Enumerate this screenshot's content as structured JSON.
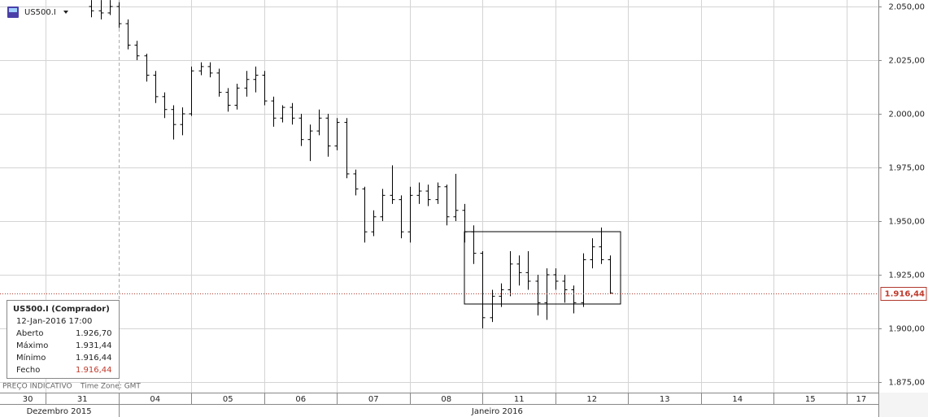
{
  "header": {
    "symbol": "US500.I"
  },
  "info_box": {
    "title": "US500.I (Comprador)",
    "date": "12-Jan-2016 17:00",
    "rows": [
      [
        "Aberto",
        "1.926,70"
      ],
      [
        "Máximo",
        "1.931,44"
      ],
      [
        "Mínimo",
        "1.916,44"
      ],
      [
        "Fecho",
        "1.916,44"
      ]
    ]
  },
  "footer": {
    "note": "PREÇO INDICATIVO",
    "timezone": "Time Zone: GMT"
  },
  "chart_data": {
    "type": "ohlc",
    "color": "#000000",
    "grid": true,
    "x": [
      -0.375,
      -0.25,
      -0.125,
      0,
      0.125,
      0.25,
      0.375,
      0.5,
      0.625,
      0.75,
      0.875,
      1,
      1.125,
      1.25,
      1.375,
      1.5,
      1.625,
      1.75,
      1.875,
      2,
      2.125,
      2.25,
      2.375,
      2.5,
      2.625,
      2.75,
      2.875,
      3,
      3.125,
      3.25,
      3.375,
      3.5,
      3.625,
      3.75,
      3.875,
      4,
      4.125,
      4.25,
      4.375,
      4.5,
      4.625,
      4.75,
      4.875,
      5,
      5.125,
      5.25,
      5.375,
      5.5,
      5.625,
      5.75,
      5.875,
      6,
      6.125,
      6.25,
      6.375,
      6.5,
      6.625,
      6.75
    ],
    "open": [
      2050,
      2048,
      2047,
      2050,
      2042,
      2032,
      2027,
      2018,
      2008,
      2002,
      1995,
      2000,
      2020,
      2022,
      2019,
      2010,
      2004,
      2012,
      2016,
      2018,
      2006,
      1998,
      2003,
      1998,
      1988,
      1992,
      1998,
      1985,
      1996,
      1972,
      1965,
      1945,
      1952,
      1962,
      1960,
      1945,
      1962,
      1964,
      1960,
      1966,
      1952,
      1955,
      1945,
      1935,
      1905,
      1915,
      1918,
      1930,
      1926,
      1922,
      1912,
      1925,
      1922,
      1918,
      1912,
      1932,
      1938,
      1932
    ],
    "high": [
      2053,
      2053,
      2053,
      2052,
      2044,
      2034,
      2028,
      2020,
      2010,
      2004,
      2003,
      2022,
      2024,
      2024,
      2021,
      2012,
      2014,
      2020,
      2022,
      2020,
      2008,
      2004,
      2005,
      2000,
      1995,
      2002,
      2000,
      1998,
      1998,
      1974,
      1966,
      1955,
      1965,
      1976,
      1962,
      1966,
      1968,
      1967,
      1968,
      1967,
      1972,
      1958,
      1948,
      1936,
      1918,
      1921,
      1936,
      1934,
      1936,
      1925,
      1928,
      1928,
      1925,
      1920,
      1935,
      1942,
      1947,
      1934
    ],
    "low": [
      2045,
      2044,
      2046,
      2040,
      2030,
      2025,
      2015,
      2005,
      1998,
      1988,
      1990,
      1999,
      2018,
      2017,
      2008,
      2001,
      2002,
      2008,
      2010,
      2004,
      1994,
      1996,
      1995,
      1985,
      1978,
      1990,
      1980,
      1983,
      1970,
      1962,
      1940,
      1943,
      1950,
      1958,
      1942,
      1940,
      1958,
      1957,
      1958,
      1948,
      1950,
      1940,
      1930,
      1900,
      1903,
      1910,
      1915,
      1920,
      1918,
      1906,
      1904,
      1918,
      1912,
      1907,
      1910,
      1928,
      1930,
      1916
    ],
    "close": [
      2048,
      2047,
      2050,
      2042,
      2032,
      2027,
      2018,
      2008,
      2002,
      1995,
      2000,
      2020,
      2022,
      2019,
      2010,
      2004,
      2012,
      2016,
      2018,
      2006,
      1998,
      2003,
      1998,
      1988,
      1992,
      1998,
      1985,
      1996,
      1972,
      1965,
      1945,
      1952,
      1962,
      1960,
      1945,
      1962,
      1964,
      1960,
      1966,
      1952,
      1955,
      1945,
      1935,
      1905,
      1915,
      1918,
      1930,
      1926,
      1922,
      1912,
      1925,
      1922,
      1918,
      1912,
      1932,
      1938,
      1932,
      1916.44
    ],
    "ylim": [
      1870.08,
      2053.03
    ],
    "yticks": [
      {
        "value": 1875,
        "label": "1.875,00"
      },
      {
        "value": 1900,
        "label": "1.900,00"
      },
      {
        "value": 1925,
        "label": "1.925,00"
      },
      {
        "value": 1950,
        "label": "1.950,00"
      },
      {
        "value": 1975,
        "label": "1.975,00"
      },
      {
        "value": 2000,
        "label": "2.000,00"
      },
      {
        "value": 2025,
        "label": "2.025,00"
      },
      {
        "value": 2050,
        "label": "2.050,00"
      }
    ],
    "xlim": [
      -1.631,
      10.436
    ],
    "x_gridlines": [
      -1,
      0,
      1,
      2,
      3,
      4,
      5,
      6,
      7,
      8,
      9,
      10
    ],
    "period_separator": 0,
    "xticks": [
      {
        "value": -1.25,
        "label": "30"
      },
      {
        "value": -0.5,
        "label": "31"
      },
      {
        "value": 0.5,
        "label": "04"
      },
      {
        "value": 1.5,
        "label": "05"
      },
      {
        "value": 2.5,
        "label": "06"
      },
      {
        "value": 3.5,
        "label": "07"
      },
      {
        "value": 4.5,
        "label": "08"
      },
      {
        "value": 5.5,
        "label": "11"
      },
      {
        "value": 6.5,
        "label": "12"
      },
      {
        "value": 7.5,
        "label": "13"
      },
      {
        "value": 8.5,
        "label": "14"
      },
      {
        "value": 9.5,
        "label": "15"
      },
      {
        "value": 10.2,
        "label": "17"
      }
    ],
    "months": [
      {
        "value": -0.82,
        "label": "Dezembro 2015"
      },
      {
        "value": 5.2,
        "label": "Janeiro 2016"
      }
    ],
    "last_price": {
      "value": 1916.44,
      "label": "1.916,44"
    }
  }
}
